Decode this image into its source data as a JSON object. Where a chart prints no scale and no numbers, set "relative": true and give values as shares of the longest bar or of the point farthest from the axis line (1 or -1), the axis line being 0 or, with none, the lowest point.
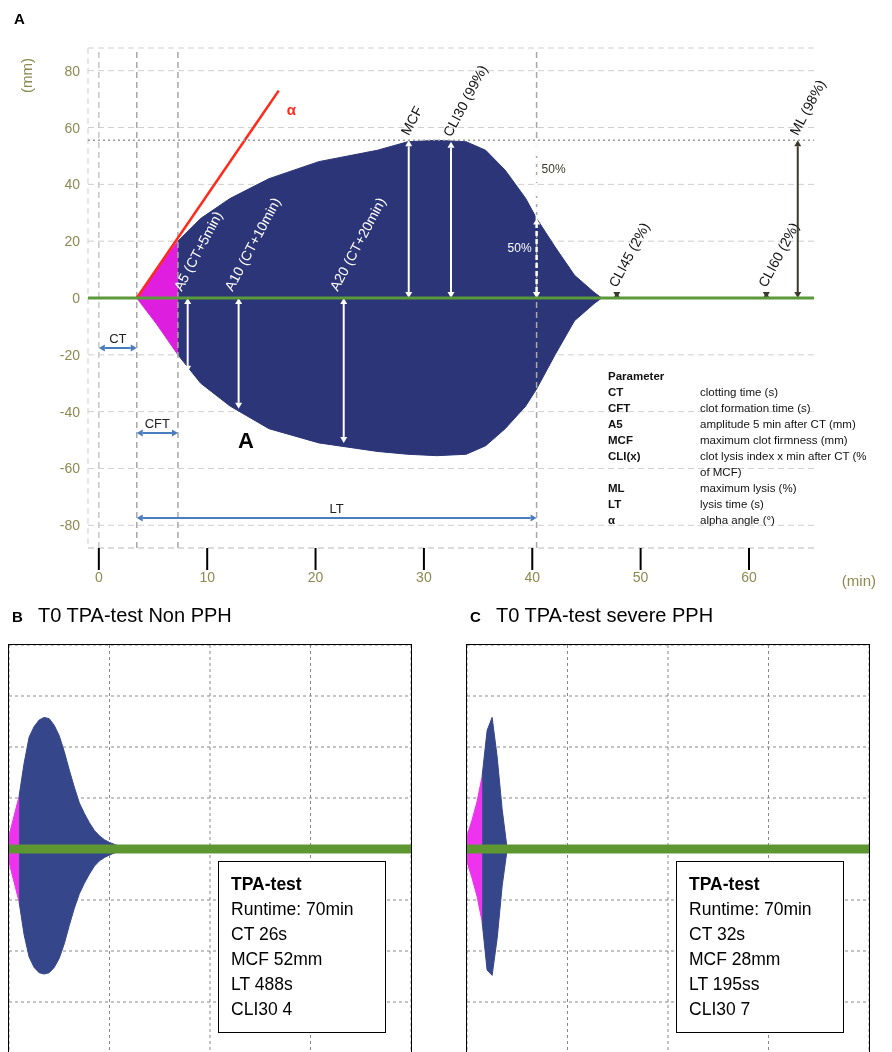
{
  "chart_data": [
    {
      "type": "area",
      "title": "A",
      "xlabel": "(min)",
      "ylabel": "(mm)",
      "xlim": [
        -1,
        66
      ],
      "xticks": [
        0,
        10,
        20,
        30,
        40,
        50,
        60
      ],
      "ylim": [
        -88,
        88
      ],
      "yticks": [
        -80,
        -60,
        -40,
        -20,
        0,
        20,
        40,
        60,
        80
      ],
      "grid": "y",
      "legend": false,
      "series": [
        {
          "color": "#e01ee0",
          "x": [
            3.5,
            5.3,
            7.3
          ],
          "values": [
            0,
            10,
            20
          ]
        },
        {
          "color": "#de1ede",
          "x": [
            3.5,
            5.3,
            7.3
          ],
          "values": [
            0,
            -9,
            -20
          ]
        },
        {
          "color": "#2b3578",
          "x": [
            7.3,
            9.4,
            12.1,
            15.7,
            20.3,
            25.7,
            28.5,
            31.2,
            33.9,
            35.7,
            37.5,
            39.4,
            40.4,
            42.1,
            43.9,
            45.7,
            46.4
          ],
          "values": [
            20,
            28,
            35,
            42,
            48,
            52,
            55,
            55.5,
            55,
            52,
            45,
            35,
            28,
            18,
            8,
            2,
            0
          ]
        },
        {
          "color": "#2b3578",
          "x": [
            7.3,
            9.4,
            12.1,
            15.7,
            20.3,
            25.7,
            28.5,
            31.2,
            33.9,
            35.7,
            37.5,
            39.4,
            40.4,
            42.1,
            43.9,
            45.7,
            46.4
          ],
          "values": [
            -20,
            -30,
            -38,
            -46,
            -51,
            -54,
            -55,
            -55.5,
            -55,
            -52,
            -46,
            -38,
            -32,
            -20,
            -8,
            -2,
            0
          ]
        },
        {
          "type": "line",
          "name": "α",
          "color": "#ff2a1a",
          "x": [
            3.5,
            16.6
          ],
          "values": [
            0,
            73
          ]
        }
      ],
      "ref_lines": [
        {
          "axis": "x",
          "value": 0,
          "color": "#c8c8c8",
          "line_style": "dashed"
        },
        {
          "axis": "x",
          "value": 3.5,
          "color": "#a8a8a8",
          "line_style": "dashed"
        },
        {
          "axis": "x",
          "value": 7.3,
          "color": "#a8a8a8",
          "line_style": "dashed"
        },
        {
          "axis": "x",
          "value": 40.4,
          "color": "#a8a8a8",
          "line_style": "dashed"
        },
        {
          "axis": "y",
          "value": 55.5,
          "color": "#999999",
          "line_style": "dotted"
        },
        {
          "axis": "y",
          "value": 0,
          "color": "#5a9a3a",
          "line_style": "solid"
        }
      ],
      "annotations": [
        "CT",
        "CFT",
        "LT",
        {
          "text": "MCF",
          "x": 28.6,
          "y": 55.5
        },
        {
          "text": "CLI30 (99%)",
          "x": 32.5,
          "y": 55
        },
        {
          "text": "CLI45 (2%)",
          "x": 47.8,
          "y": 2
        },
        {
          "text": "CLI60 (2%)",
          "x": 61.6,
          "y": 2
        },
        {
          "text": "ML (98%)",
          "x": 64.5,
          "y": 55.5
        },
        {
          "text": "A5 (CT+5min)",
          "x": 8.2,
          "y": -26
        },
        {
          "text": "A10 (CT+10min)",
          "x": 12.9,
          "y": -39
        },
        {
          "text": "A20 (CT+20min)",
          "x": 22.6,
          "y": -51
        },
        {
          "text": "50%",
          "x": 40.4,
          "y": 56
        },
        {
          "text": "50%",
          "x": 40.4,
          "y": 28
        },
        "A",
        "Parameter",
        "CT",
        "clotting time (s)",
        "CFT",
        "clot formation time (s)",
        "A5",
        "amplitude 5 min after CT (mm)",
        "MCF",
        "maximum clot firmness (mm)",
        "CLI(x)",
        "clot lysis index x min after CT (% of MCF)",
        "ML",
        "maximum lysis (%)",
        "LT",
        "lysis time (s)",
        "α",
        "alpha angle (°)"
      ]
    },
    {
      "type": "area",
      "title": "B",
      "subtitle": "T0 TPA-test Non PPH",
      "relative": true,
      "grid": true,
      "categories": [
        null,
        null,
        null,
        null,
        null,
        null,
        null,
        null,
        null,
        null,
        null,
        null,
        null,
        null,
        null,
        null,
        null,
        null,
        null,
        null,
        null,
        null,
        null,
        null,
        null,
        null,
        null,
        null,
        null,
        null,
        null,
        null,
        null,
        null,
        null,
        null,
        null,
        null,
        null,
        null,
        null,
        null,
        null,
        null,
        null,
        null,
        null,
        null,
        null,
        null,
        null,
        null,
        null,
        null,
        null,
        null,
        null,
        null,
        null,
        null,
        null,
        null,
        null,
        null,
        null,
        null,
        null,
        null,
        null,
        null,
        null,
        null,
        null,
        null,
        null,
        null,
        null,
        null,
        null,
        null,
        null
      ],
      "series": [
        {
          "color": "#ee33ee",
          "values": [
            0.1,
            0.25,
            0.4,
            null,
            null,
            null,
            null,
            null,
            null,
            null,
            null,
            null,
            null,
            null,
            null,
            null,
            null,
            null,
            null,
            null,
            null,
            null,
            null,
            null,
            null,
            null,
            null,
            null,
            null,
            null,
            null,
            null,
            null,
            null,
            null,
            null,
            null,
            null,
            null,
            null,
            null,
            null,
            null,
            null,
            null,
            null,
            null,
            null,
            null,
            null,
            null,
            null,
            null,
            null,
            null,
            null,
            null,
            null,
            null,
            null,
            null,
            null,
            null,
            null,
            null,
            null,
            null,
            null,
            null,
            null,
            null,
            null,
            null,
            null,
            null,
            null,
            null,
            null,
            null,
            null,
            null
          ]
        },
        {
          "color": "#ee33ee",
          "values": [
            -0.1,
            -0.25,
            -0.4,
            null,
            null,
            null,
            null,
            null,
            null,
            null,
            null,
            null,
            null,
            null,
            null,
            null,
            null,
            null,
            null,
            null,
            null,
            null,
            null,
            null,
            null,
            null,
            null,
            null,
            null,
            null,
            null,
            null,
            null,
            null,
            null,
            null,
            null,
            null,
            null,
            null,
            null,
            null,
            null,
            null,
            null,
            null,
            null,
            null,
            null,
            null,
            null,
            null,
            null,
            null,
            null,
            null,
            null,
            null,
            null,
            null,
            null,
            null,
            null,
            null,
            null,
            null,
            null,
            null,
            null,
            null,
            null,
            null,
            null,
            null,
            null,
            null,
            null,
            null,
            null,
            null,
            null
          ]
        },
        {
          "color": "#36468a",
          "values": [
            null,
            null,
            0.4,
            0.65,
            0.85,
            0.93,
            0.98,
            1,
            0.99,
            0.94,
            0.86,
            0.74,
            0.6,
            0.47,
            0.35,
            0.27,
            0.2,
            0.14,
            0.1,
            0.07,
            0.05,
            0.035,
            0.02,
            0.01,
            0.005,
            0,
            null,
            null,
            null,
            null,
            null,
            null,
            null,
            null,
            null,
            null,
            null,
            null,
            null,
            null,
            null,
            null,
            null,
            null,
            null,
            null,
            null,
            null,
            null,
            null,
            null,
            null,
            null,
            null,
            null,
            null,
            null,
            null,
            null,
            null,
            null,
            null,
            null,
            null,
            null,
            null,
            null,
            null,
            null,
            null,
            null,
            null,
            null,
            null,
            null,
            null,
            null,
            null,
            null,
            null,
            null
          ]
        },
        {
          "color": "#36468a",
          "values": [
            null,
            null,
            -0.4,
            -0.65,
            -0.82,
            -0.9,
            -0.94,
            -0.95,
            -0.94,
            -0.9,
            -0.83,
            -0.72,
            -0.58,
            -0.45,
            -0.34,
            -0.26,
            -0.19,
            -0.13,
            -0.09,
            -0.065,
            -0.045,
            -0.03,
            -0.02,
            -0.01,
            -0.005,
            0,
            null,
            null,
            null,
            null,
            null,
            null,
            null,
            null,
            null,
            null,
            null,
            null,
            null,
            null,
            null,
            null,
            null,
            null,
            null,
            null,
            null,
            null,
            null,
            null,
            null,
            null,
            null,
            null,
            null,
            null,
            null,
            null,
            null,
            null,
            null,
            null,
            null,
            null,
            null,
            null,
            null,
            null,
            null,
            null,
            null,
            null,
            null,
            null,
            null,
            null,
            null,
            null,
            null,
            null,
            null
          ]
        }
      ],
      "ref_lines": [
        {
          "axis": "y",
          "value": 0,
          "color": "#5e9732",
          "line_style": "solid"
        }
      ],
      "annotations": [
        "TPA-test",
        "Runtime: 70min",
        "CT 26s",
        "MCF 52mm",
        "LT 488s",
        "CLI30 4"
      ]
    },
    {
      "type": "area",
      "title": "C",
      "subtitle": "T0 TPA-test severe PPH",
      "relative": true,
      "grid": true,
      "categories": [
        null,
        null,
        null,
        null,
        null,
        null,
        null,
        null,
        null,
        null,
        null,
        null,
        null,
        null,
        null,
        null,
        null,
        null,
        null,
        null,
        null,
        null,
        null,
        null,
        null,
        null,
        null,
        null,
        null,
        null,
        null,
        null,
        null,
        null,
        null,
        null,
        null,
        null,
        null,
        null,
        null,
        null,
        null,
        null,
        null,
        null,
        null,
        null,
        null,
        null,
        null,
        null,
        null,
        null,
        null,
        null,
        null,
        null,
        null,
        null,
        null,
        null,
        null,
        null,
        null,
        null,
        null,
        null,
        null,
        null,
        null,
        null,
        null,
        null,
        null,
        null,
        null,
        null,
        null,
        null,
        null
      ],
      "series": [
        {
          "color": "#ee33ee",
          "values": [
            0.1,
            0.22,
            0.36,
            0.55,
            null,
            null,
            null,
            null,
            null,
            null,
            null,
            null,
            null,
            null,
            null,
            null,
            null,
            null,
            null,
            null,
            null,
            null,
            null,
            null,
            null,
            null,
            null,
            null,
            null,
            null,
            null,
            null,
            null,
            null,
            null,
            null,
            null,
            null,
            null,
            null,
            null,
            null,
            null,
            null,
            null,
            null,
            null,
            null,
            null,
            null,
            null,
            null,
            null,
            null,
            null,
            null,
            null,
            null,
            null,
            null,
            null,
            null,
            null,
            null,
            null,
            null,
            null,
            null,
            null,
            null,
            null,
            null,
            null,
            null,
            null,
            null,
            null,
            null,
            null,
            null,
            null
          ]
        },
        {
          "color": "#ee33ee",
          "values": [
            -0.1,
            -0.22,
            -0.36,
            -0.55,
            null,
            null,
            null,
            null,
            null,
            null,
            null,
            null,
            null,
            null,
            null,
            null,
            null,
            null,
            null,
            null,
            null,
            null,
            null,
            null,
            null,
            null,
            null,
            null,
            null,
            null,
            null,
            null,
            null,
            null,
            null,
            null,
            null,
            null,
            null,
            null,
            null,
            null,
            null,
            null,
            null,
            null,
            null,
            null,
            null,
            null,
            null,
            null,
            null,
            null,
            null,
            null,
            null,
            null,
            null,
            null,
            null,
            null,
            null,
            null,
            null,
            null,
            null,
            null,
            null,
            null,
            null,
            null,
            null,
            null,
            null,
            null,
            null,
            null,
            null,
            null,
            null
          ]
        },
        {
          "color": "#36468a",
          "values": [
            null,
            null,
            null,
            0.55,
            0.9,
            1,
            0.7,
            0.3,
            0,
            null,
            null,
            null,
            null,
            null,
            null,
            null,
            null,
            null,
            null,
            null,
            null,
            null,
            null,
            null,
            null,
            null,
            null,
            null,
            null,
            null,
            null,
            null,
            null,
            null,
            null,
            null,
            null,
            null,
            null,
            null,
            null,
            null,
            null,
            null,
            null,
            null,
            null,
            null,
            null,
            null,
            null,
            null,
            null,
            null,
            null,
            null,
            null,
            null,
            null,
            null,
            null,
            null,
            null,
            null,
            null,
            null,
            null,
            null,
            null,
            null,
            null,
            null,
            null,
            null,
            null,
            null,
            null,
            null,
            null,
            null,
            null
          ]
        },
        {
          "color": "#36468a",
          "values": [
            null,
            null,
            null,
            -0.55,
            -0.92,
            -0.96,
            -0.68,
            -0.28,
            0,
            null,
            null,
            null,
            null,
            null,
            null,
            null,
            null,
            null,
            null,
            null,
            null,
            null,
            null,
            null,
            null,
            null,
            null,
            null,
            null,
            null,
            null,
            null,
            null,
            null,
            null,
            null,
            null,
            null,
            null,
            null,
            null,
            null,
            null,
            null,
            null,
            null,
            null,
            null,
            null,
            null,
            null,
            null,
            null,
            null,
            null,
            null,
            null,
            null,
            null,
            null,
            null,
            null,
            null,
            null,
            null,
            null,
            null,
            null,
            null,
            null,
            null,
            null,
            null,
            null,
            null,
            null,
            null,
            null,
            null,
            null,
            null
          ]
        }
      ],
      "ref_lines": [
        {
          "axis": "y",
          "value": 0,
          "color": "#5e9732",
          "line_style": "solid"
        }
      ],
      "annotations": [
        "TPA-test",
        "Runtime: 70min",
        "CT 32s",
        "MCF 28mm",
        "LT 195ss",
        "CLI30 7"
      ]
    }
  ]
}
